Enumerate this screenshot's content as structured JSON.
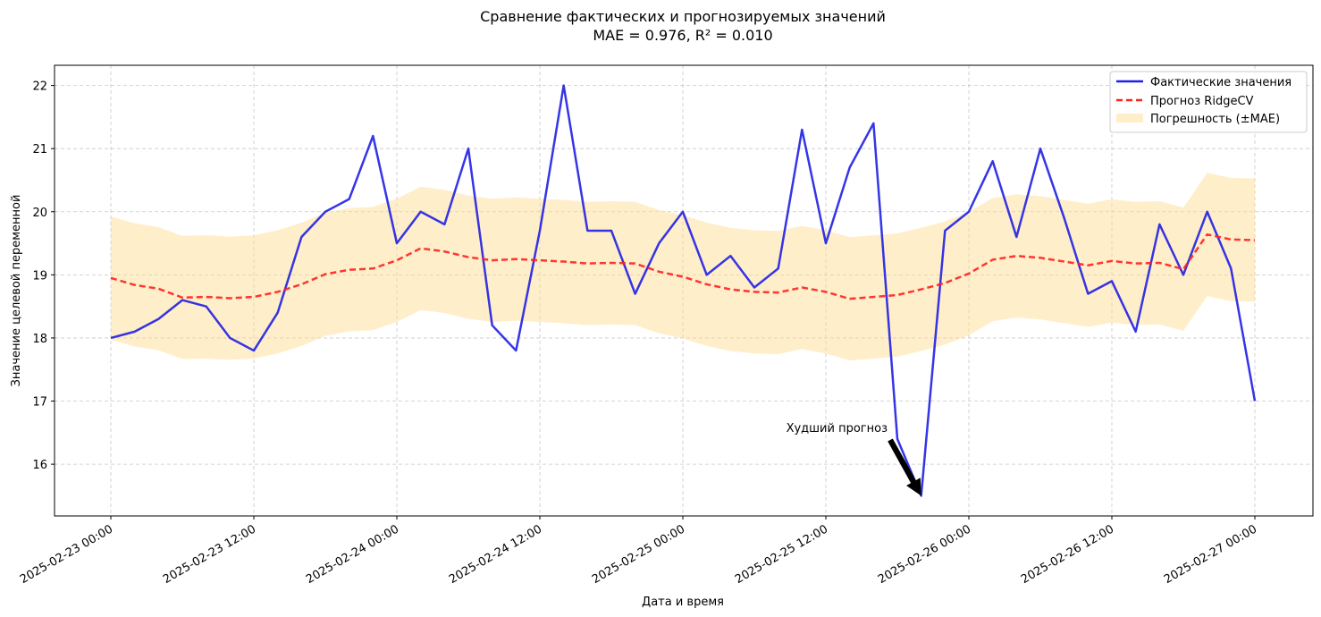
{
  "chart_data": {
    "type": "line",
    "title": "Сравнение фактических и прогнозируемых значений",
    "subtitle": "MAE = 0.976, R² = 0.010",
    "xlabel": "Дата и время",
    "ylabel": "Значение целевой переменной",
    "x_ticks": [
      "2025-02-23 00:00",
      "2025-02-23 12:00",
      "2025-02-24 00:00",
      "2025-02-24 12:00",
      "2025-02-25 00:00",
      "2025-02-25 12:00",
      "2025-02-26 00:00",
      "2025-02-26 12:00",
      "2025-02-27 00:00"
    ],
    "y_ticks": [
      16,
      17,
      18,
      19,
      20,
      21,
      22
    ],
    "ylim": [
      15.18,
      22.32
    ],
    "x_start": "2025-02-23 00:00",
    "x_step_hours": 2,
    "grid": true,
    "legend_position": "top-right",
    "mae": 0.976,
    "series": [
      {
        "name": "Фактические значения",
        "style": "solid",
        "color": "#1f1fe6",
        "values": [
          18.0,
          18.1,
          18.3,
          18.6,
          18.5,
          18.0,
          17.8,
          18.4,
          19.6,
          20.0,
          20.2,
          21.2,
          19.5,
          20.0,
          19.8,
          21.0,
          18.2,
          17.8,
          19.7,
          22.0,
          19.7,
          19.7,
          18.7,
          19.5,
          20.0,
          19.0,
          19.3,
          18.8,
          19.1,
          21.3,
          19.5,
          20.7,
          21.4,
          16.4,
          15.5,
          19.7,
          20.0,
          20.8,
          19.6,
          21.0,
          19.9,
          18.7,
          18.9,
          18.1,
          19.8,
          19.0,
          20.0,
          19.1,
          17.0
        ]
      },
      {
        "name": "Прогноз RidgeCV",
        "style": "dashed",
        "color": "#ff2020",
        "values": [
          18.95,
          18.84,
          18.78,
          18.64,
          18.65,
          18.63,
          18.65,
          18.73,
          18.85,
          19.01,
          19.08,
          19.1,
          19.23,
          19.42,
          19.37,
          19.28,
          19.23,
          19.25,
          19.23,
          19.21,
          19.18,
          19.19,
          19.18,
          19.05,
          18.97,
          18.85,
          18.77,
          18.73,
          18.72,
          18.8,
          18.73,
          18.62,
          18.65,
          18.68,
          18.77,
          18.87,
          19.02,
          19.24,
          19.3,
          19.27,
          19.21,
          19.15,
          19.22,
          19.18,
          19.19,
          19.09,
          19.64,
          19.56,
          19.55
        ]
      }
    ],
    "band": {
      "name": "Погрешность (±MAE)",
      "color": "#ffd98a"
    },
    "annotation": {
      "text": "Худший прогноз",
      "point_index": 34
    }
  }
}
